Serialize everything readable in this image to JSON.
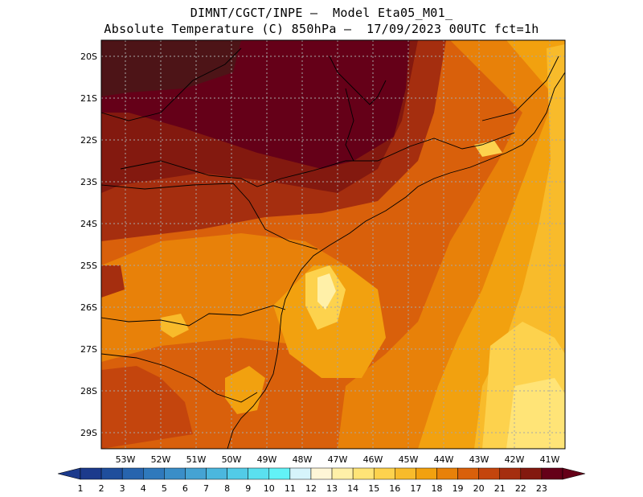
{
  "title": {
    "line1": "DIMNT/CGCT/INPE –  Model Eta05_M01_",
    "line2": "Absolute Temperature (C) 850hPa –  17/09/2023 00UTC fct=1h"
  },
  "axes": {
    "lat_labels": [
      "20S",
      "21S",
      "22S",
      "23S",
      "24S",
      "25S",
      "26S",
      "27S",
      "28S",
      "29S"
    ],
    "lon_labels": [
      "53W",
      "52W",
      "51W",
      "50W",
      "49W",
      "48W",
      "47W",
      "46W",
      "45W",
      "44W",
      "43W",
      "42W",
      "41W"
    ]
  },
  "legend": {
    "labels": [
      "1",
      "2",
      "3",
      "4",
      "5",
      "6",
      "7",
      "8",
      "9",
      "10",
      "11",
      "12",
      "13",
      "14",
      "15",
      "16",
      "17",
      "18",
      "19",
      "20",
      "21",
      "22",
      "23"
    ],
    "colors": [
      "#1c3a8c",
      "#1f4e9c",
      "#2764ae",
      "#2f79bc",
      "#3a8ec8",
      "#45a3d3",
      "#4bb7de",
      "#52cbe7",
      "#5ae0ef",
      "#62f2f7",
      "#d6f4fb",
      "#fff6d7",
      "#fff0a8",
      "#ffe477",
      "#fdd24d",
      "#f8bb2b",
      "#f2a10f",
      "#e88109",
      "#d9600b",
      "#c4450d",
      "#a52e0f",
      "#83190f",
      "#650018"
    ]
  },
  "icons": {
    "left_arrow": "left-triangle-icon",
    "right_arrow": "right-triangle-icon"
  }
}
